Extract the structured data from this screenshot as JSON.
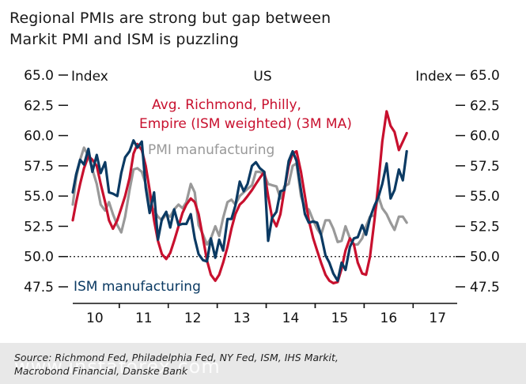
{
  "title": {
    "line1": "Regional PMIs are strong but gap between",
    "line2": "Markit PMI and ISM is puzzling"
  },
  "chart_data": {
    "type": "line",
    "chart_title": "US",
    "y_axis_left_label": "Index",
    "y_axis_right_label": "Index",
    "ylim": [
      47.5,
      65.0
    ],
    "yticks": [
      "65.0",
      "62.5",
      "60.0",
      "57.5",
      "55.0",
      "52.5",
      "50.0",
      "47.5"
    ],
    "ytick_values": [
      65.0,
      62.5,
      60.0,
      57.5,
      55.0,
      52.5,
      50.0,
      47.5
    ],
    "reference_line": 50.0,
    "x_ticks": [
      "10",
      "11",
      "12",
      "13",
      "14",
      "15",
      "16",
      "17"
    ],
    "x_tick_positions": [
      2010,
      2011,
      2012,
      2013,
      2014,
      2015,
      2016,
      2017
    ],
    "xlim": [
      2009.55,
      2017.4
    ],
    "colors": {
      "red": "#c8102e",
      "navy": "#0b3a63",
      "gray": "#999999",
      "axis": "#111111"
    },
    "series": [
      {
        "name": "ISM manufacturing",
        "label": "ISM manufacturing",
        "color": "#0b3a63",
        "points": [
          [
            2009.55,
            55.3
          ],
          [
            2009.62,
            56.8
          ],
          [
            2009.7,
            58.0
          ],
          [
            2009.78,
            57.6
          ],
          [
            2009.87,
            58.9
          ],
          [
            2009.95,
            57.0
          ],
          [
            2010.04,
            58.4
          ],
          [
            2010.12,
            56.9
          ],
          [
            2010.21,
            57.8
          ],
          [
            2010.29,
            55.3
          ],
          [
            2010.37,
            55.2
          ],
          [
            2010.46,
            55.0
          ],
          [
            2010.54,
            56.9
          ],
          [
            2010.62,
            58.2
          ],
          [
            2010.71,
            58.7
          ],
          [
            2010.79,
            59.6
          ],
          [
            2010.87,
            59.0
          ],
          [
            2010.96,
            59.5
          ],
          [
            2011.04,
            55.7
          ],
          [
            2011.12,
            53.6
          ],
          [
            2011.21,
            55.3
          ],
          [
            2011.29,
            51.4
          ],
          [
            2011.37,
            53.1
          ],
          [
            2011.46,
            53.7
          ],
          [
            2011.54,
            52.4
          ],
          [
            2011.62,
            53.9
          ],
          [
            2011.71,
            52.6
          ],
          [
            2011.79,
            52.7
          ],
          [
            2011.87,
            52.7
          ],
          [
            2011.96,
            53.5
          ],
          [
            2012.04,
            51.5
          ],
          [
            2012.12,
            50.2
          ],
          [
            2012.21,
            49.7
          ],
          [
            2012.29,
            49.6
          ],
          [
            2012.37,
            51.5
          ],
          [
            2012.46,
            49.9
          ],
          [
            2012.54,
            51.4
          ],
          [
            2012.62,
            50.5
          ],
          [
            2012.71,
            53.1
          ],
          [
            2012.79,
            53.1
          ],
          [
            2012.87,
            54.2
          ],
          [
            2012.96,
            56.2
          ],
          [
            2013.04,
            55.4
          ],
          [
            2013.12,
            56.0
          ],
          [
            2013.21,
            57.5
          ],
          [
            2013.29,
            57.8
          ],
          [
            2013.37,
            57.3
          ],
          [
            2013.46,
            57.0
          ],
          [
            2013.54,
            51.3
          ],
          [
            2013.62,
            53.2
          ],
          [
            2013.71,
            53.7
          ],
          [
            2013.79,
            55.4
          ],
          [
            2013.87,
            55.5
          ],
          [
            2013.96,
            57.9
          ],
          [
            2014.04,
            58.7
          ],
          [
            2014.12,
            57.9
          ],
          [
            2014.21,
            55.5
          ],
          [
            2014.29,
            53.5
          ],
          [
            2014.37,
            52.8
          ],
          [
            2014.46,
            52.9
          ],
          [
            2014.54,
            52.8
          ],
          [
            2014.62,
            51.8
          ],
          [
            2014.71,
            50.1
          ],
          [
            2014.79,
            49.5
          ],
          [
            2014.87,
            48.6
          ],
          [
            2014.96,
            48.0
          ],
          [
            2015.04,
            49.5
          ],
          [
            2015.12,
            48.9
          ],
          [
            2015.21,
            50.8
          ],
          [
            2015.29,
            51.5
          ],
          [
            2015.37,
            51.6
          ],
          [
            2015.46,
            52.6
          ],
          [
            2015.54,
            51.8
          ],
          [
            2015.62,
            53.2
          ],
          [
            2015.71,
            54.2
          ],
          [
            2015.79,
            54.9
          ],
          [
            2015.87,
            56.0
          ],
          [
            2015.96,
            57.7
          ],
          [
            2016.04,
            54.8
          ],
          [
            2016.12,
            55.5
          ],
          [
            2016.21,
            57.2
          ],
          [
            2016.29,
            56.3
          ],
          [
            2016.37,
            58.7
          ]
        ]
      },
      {
        "name": "Avg. Richmond, Philly, Empire (ISM weighted) (3M MA)",
        "label_line1": "Avg. Richmond, Philly,",
        "label_line2": "Empire (ISM weighted) (3M MA)",
        "color": "#c8102e",
        "points": [
          [
            2009.55,
            53.0
          ],
          [
            2009.62,
            54.5
          ],
          [
            2009.7,
            56.0
          ],
          [
            2009.78,
            57.3
          ],
          [
            2009.87,
            58.3
          ],
          [
            2009.95,
            58.0
          ],
          [
            2010.04,
            57.5
          ],
          [
            2010.12,
            56.0
          ],
          [
            2010.21,
            54.5
          ],
          [
            2010.29,
            53.0
          ],
          [
            2010.37,
            52.3
          ],
          [
            2010.46,
            53.0
          ],
          [
            2010.54,
            54.0
          ],
          [
            2010.62,
            55.0
          ],
          [
            2010.71,
            56.5
          ],
          [
            2010.79,
            58.5
          ],
          [
            2010.87,
            59.3
          ],
          [
            2010.96,
            58.8
          ],
          [
            2011.04,
            57.5
          ],
          [
            2011.12,
            55.5
          ],
          [
            2011.21,
            53.0
          ],
          [
            2011.29,
            51.3
          ],
          [
            2011.37,
            50.2
          ],
          [
            2011.46,
            49.8
          ],
          [
            2011.54,
            50.3
          ],
          [
            2011.62,
            51.3
          ],
          [
            2011.71,
            52.5
          ],
          [
            2011.79,
            53.6
          ],
          [
            2011.87,
            54.3
          ],
          [
            2011.96,
            54.8
          ],
          [
            2012.04,
            54.5
          ],
          [
            2012.12,
            53.5
          ],
          [
            2012.21,
            51.5
          ],
          [
            2012.29,
            49.7
          ],
          [
            2012.37,
            48.5
          ],
          [
            2012.46,
            48.0
          ],
          [
            2012.54,
            48.5
          ],
          [
            2012.62,
            49.5
          ],
          [
            2012.71,
            50.8
          ],
          [
            2012.79,
            52.3
          ],
          [
            2012.87,
            53.5
          ],
          [
            2012.96,
            54.3
          ],
          [
            2013.04,
            54.6
          ],
          [
            2013.12,
            55.0
          ],
          [
            2013.21,
            55.5
          ],
          [
            2013.29,
            56.0
          ],
          [
            2013.37,
            56.5
          ],
          [
            2013.46,
            57.0
          ],
          [
            2013.54,
            55.0
          ],
          [
            2013.62,
            53.2
          ],
          [
            2013.71,
            52.5
          ],
          [
            2013.79,
            53.5
          ],
          [
            2013.87,
            55.5
          ],
          [
            2013.96,
            57.5
          ],
          [
            2014.04,
            58.5
          ],
          [
            2014.12,
            58.7
          ],
          [
            2014.21,
            57.0
          ],
          [
            2014.29,
            55.0
          ],
          [
            2014.37,
            53.0
          ],
          [
            2014.46,
            51.5
          ],
          [
            2014.54,
            50.5
          ],
          [
            2014.62,
            49.5
          ],
          [
            2014.71,
            48.5
          ],
          [
            2014.79,
            48.0
          ],
          [
            2014.87,
            47.8
          ],
          [
            2014.96,
            47.9
          ],
          [
            2015.04,
            49.0
          ],
          [
            2015.12,
            50.5
          ],
          [
            2015.21,
            51.5
          ],
          [
            2015.29,
            51.0
          ],
          [
            2015.37,
            49.5
          ],
          [
            2015.46,
            48.6
          ],
          [
            2015.54,
            48.5
          ],
          [
            2015.62,
            50.0
          ],
          [
            2015.71,
            53.0
          ],
          [
            2015.79,
            56.0
          ],
          [
            2015.87,
            59.5
          ],
          [
            2015.96,
            62.0
          ],
          [
            2016.04,
            60.8
          ],
          [
            2016.12,
            60.3
          ],
          [
            2016.21,
            58.8
          ],
          [
            2016.29,
            59.5
          ],
          [
            2016.37,
            60.2
          ]
        ]
      },
      {
        "name": "PMI manufacturing",
        "label": "PMI manufacturing",
        "color": "#999999",
        "points": [
          [
            2009.55,
            54.3
          ],
          [
            2009.62,
            56.5
          ],
          [
            2009.7,
            58.0
          ],
          [
            2009.78,
            59.0
          ],
          [
            2009.87,
            58.3
          ],
          [
            2009.95,
            57.2
          ],
          [
            2010.04,
            56.0
          ],
          [
            2010.12,
            54.3
          ],
          [
            2010.21,
            53.8
          ],
          [
            2010.29,
            54.5
          ],
          [
            2010.37,
            53.5
          ],
          [
            2010.46,
            52.6
          ],
          [
            2010.54,
            52.0
          ],
          [
            2010.62,
            53.3
          ],
          [
            2010.71,
            55.5
          ],
          [
            2010.79,
            57.2
          ],
          [
            2010.87,
            57.3
          ],
          [
            2010.96,
            57.0
          ],
          [
            2011.04,
            56.0
          ],
          [
            2011.12,
            54.3
          ],
          [
            2011.21,
            53.8
          ],
          [
            2011.29,
            53.3
          ],
          [
            2011.37,
            53.0
          ],
          [
            2011.46,
            53.5
          ],
          [
            2011.54,
            53.3
          ],
          [
            2011.62,
            53.9
          ],
          [
            2011.71,
            54.3
          ],
          [
            2011.79,
            54.0
          ],
          [
            2011.87,
            54.5
          ],
          [
            2011.96,
            56.0
          ],
          [
            2012.04,
            55.3
          ],
          [
            2012.12,
            52.6
          ],
          [
            2012.21,
            51.8
          ],
          [
            2012.29,
            51.0
          ],
          [
            2012.37,
            51.5
          ],
          [
            2012.46,
            52.5
          ],
          [
            2012.54,
            51.7
          ],
          [
            2012.62,
            53.2
          ],
          [
            2012.71,
            54.5
          ],
          [
            2012.79,
            54.7
          ],
          [
            2012.87,
            54.3
          ],
          [
            2012.96,
            55.0
          ],
          [
            2013.04,
            55.3
          ],
          [
            2013.12,
            55.6
          ],
          [
            2013.21,
            55.9
          ],
          [
            2013.29,
            57.0
          ],
          [
            2013.37,
            57.0
          ],
          [
            2013.46,
            56.8
          ],
          [
            2013.54,
            56.0
          ],
          [
            2013.62,
            55.9
          ],
          [
            2013.71,
            55.8
          ],
          [
            2013.79,
            54.8
          ],
          [
            2013.87,
            55.8
          ],
          [
            2013.96,
            56.0
          ],
          [
            2014.04,
            57.5
          ],
          [
            2014.12,
            57.7
          ],
          [
            2014.21,
            55.0
          ],
          [
            2014.29,
            54.0
          ],
          [
            2014.37,
            53.9
          ],
          [
            2014.46,
            53.0
          ],
          [
            2014.54,
            52.3
          ],
          [
            2014.62,
            51.8
          ],
          [
            2014.71,
            53.0
          ],
          [
            2014.79,
            53.0
          ],
          [
            2014.87,
            52.3
          ],
          [
            2014.96,
            51.2
          ],
          [
            2015.04,
            51.3
          ],
          [
            2015.12,
            52.5
          ],
          [
            2015.21,
            51.5
          ],
          [
            2015.29,
            51.0
          ],
          [
            2015.37,
            51.0
          ],
          [
            2015.46,
            51.5
          ],
          [
            2015.54,
            52.5
          ],
          [
            2015.62,
            53.3
          ],
          [
            2015.71,
            53.4
          ],
          [
            2015.79,
            55.0
          ],
          [
            2015.87,
            54.0
          ],
          [
            2015.96,
            53.5
          ],
          [
            2016.04,
            52.8
          ],
          [
            2016.12,
            52.2
          ],
          [
            2016.21,
            53.3
          ],
          [
            2016.29,
            53.3
          ],
          [
            2016.37,
            52.8
          ]
        ]
      }
    ]
  },
  "source": {
    "line1": "Source: Richmond Fed, Philadelphia Fed, NY Fed, ISM, IHS Markit,",
    "line2": "Macrobond Financial, Danske Bank"
  },
  "watermark": "www.instaforex.com"
}
